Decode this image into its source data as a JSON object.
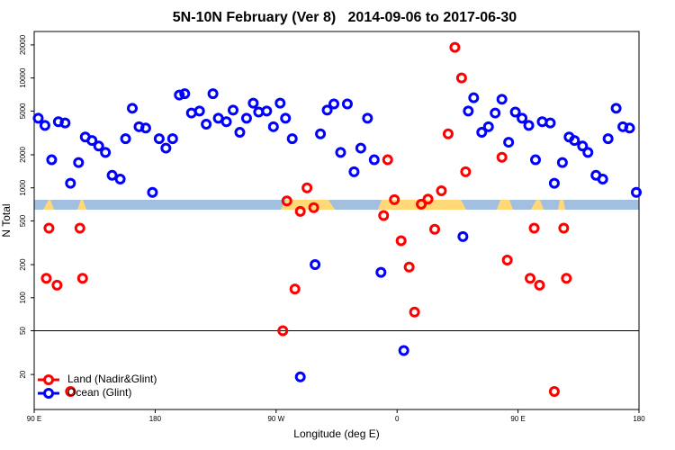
{
  "chart_data": {
    "type": "scatter",
    "title": "5N-10N February (Ver 8)   2014-09-06 to 2017-06-30",
    "x_label": "Longitude (deg E)",
    "y_label": "N Total",
    "log_y": true,
    "xlim": [
      90,
      540
    ],
    "ylim": [
      9.6,
      26500
    ],
    "xticks": [
      {
        "value": 90,
        "label": "90 E"
      },
      180,
      {
        "value": 270,
        "label": "90 W"
      },
      {
        "value": 360,
        "label": "0"
      },
      {
        "value": 450,
        "label": "90 E"
      },
      {
        "value": 540,
        "label": "180"
      }
    ],
    "yticks": [
      20,
      50,
      100,
      200,
      500,
      1000,
      2000,
      5000,
      10000,
      20000
    ],
    "hline": 50,
    "legend": "bottom-left",
    "series": [
      {
        "name": "Land (Nadir&Glint)",
        "color": "#ff0000",
        "x": [
          99,
          101,
          107,
          117,
          124,
          126,
          275,
          278,
          284,
          288,
          293,
          298,
          350,
          353,
          358,
          363,
          369,
          373,
          378,
          383,
          388,
          393,
          398,
          403,
          408,
          411,
          438,
          442,
          459,
          462,
          466,
          477,
          484,
          486
        ],
        "values": [
          150,
          430,
          130,
          14,
          430,
          150,
          50,
          760,
          120,
          610,
          1000,
          660,
          560,
          1800,
          780,
          330,
          190,
          74,
          710,
          790,
          420,
          940,
          3100,
          19000,
          10000,
          1400,
          1900,
          220,
          150,
          430,
          130,
          14,
          430,
          150
        ]
      },
      {
        "name": "Ocean (Glint)",
        "color": "#0000ff",
        "x": [
          93,
          98,
          103,
          108,
          113,
          117,
          123,
          128,
          133,
          138,
          143,
          148,
          154,
          158,
          163,
          168,
          173,
          178,
          183,
          188,
          193,
          198,
          202,
          207,
          213,
          218,
          223,
          227,
          233,
          238,
          243,
          248,
          253,
          257,
          263,
          268,
          273,
          277,
          282,
          288,
          299,
          303,
          308,
          313,
          318,
          323,
          328,
          333,
          338,
          343,
          348,
          365,
          409,
          413,
          417,
          423,
          428,
          433,
          438,
          443,
          448,
          453,
          458,
          463,
          468,
          474,
          477,
          483,
          488,
          492,
          498,
          502,
          508,
          513,
          517,
          523,
          528,
          533,
          538
        ],
        "values": [
          4300,
          3700,
          1800,
          4000,
          3900,
          1100,
          1700,
          2900,
          2700,
          2400,
          2100,
          1300,
          1200,
          2800,
          5300,
          3600,
          3500,
          910,
          2800,
          2300,
          2800,
          7000,
          7200,
          4800,
          5000,
          3800,
          7200,
          4300,
          4000,
          5100,
          3200,
          4300,
          5900,
          4900,
          5000,
          3600,
          5900,
          4300,
          2800,
          19,
          200,
          3100,
          5100,
          5800,
          2100,
          5800,
          1400,
          2300,
          4300,
          1800,
          170,
          33,
          360,
          5000,
          6600,
          3200,
          3600,
          4800,
          6400,
          2600,
          4900,
          4300,
          3700,
          1800,
          4000,
          3900,
          1100,
          1700,
          2900,
          2700,
          2400,
          2100,
          1300,
          1200,
          2800,
          5300,
          3600,
          3500,
          910
        ]
      }
    ]
  }
}
